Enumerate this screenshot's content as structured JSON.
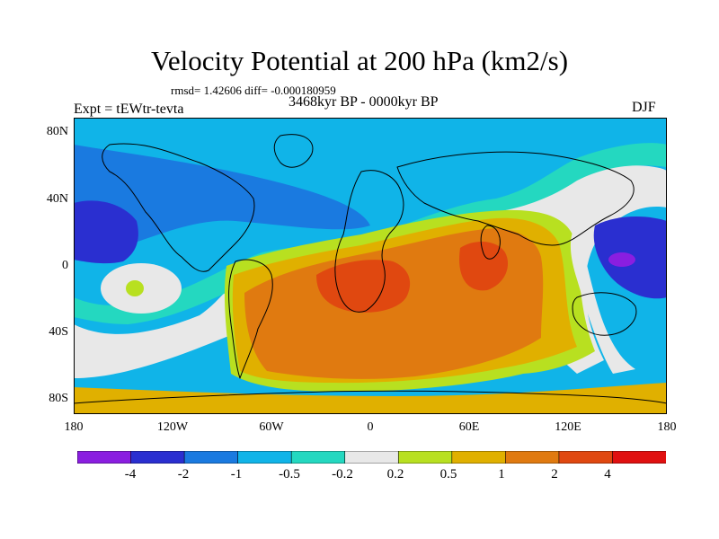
{
  "plot": {
    "title": "Velocity Potential at 200 hPa (km2/s)",
    "stats": "rmsd= 1.42606 diff= -0.000180959",
    "experiment": "Expt = tEWtr-tevta",
    "period": "3468kyr BP - 0000kyr BP",
    "season": "DJF"
  },
  "axes": {
    "lat_labels": [
      "80N",
      "40N",
      "0",
      "40S",
      "80S"
    ],
    "lon_labels": [
      "180",
      "120W",
      "60W",
      "0",
      "60E",
      "120E",
      "180"
    ]
  },
  "colorbar": {
    "labels": [
      "-4",
      "-2",
      "-1",
      "-0.5",
      "-0.2",
      "0.2",
      "0.5",
      "1",
      "2",
      "4"
    ],
    "colors": [
      "#8a1ee0",
      "#2a2fd0",
      "#1a7ae0",
      "#10b4e8",
      "#24d8c0",
      "#e8e8e8",
      "#b8e020",
      "#e0b000",
      "#e07a10",
      "#e04810",
      "#e01010"
    ]
  },
  "colors": {
    "strong_negative": "#2a2fd0",
    "moderate_negative": "#1a7ae0",
    "weak_negative": "#10b4e8",
    "near_zero_negative": "#24d8c0",
    "neutral": "#e8e8e8",
    "weak_positive": "#b8e020",
    "moderate_positive": "#e0b000",
    "strong_positive": "#e07a10",
    "very_strong_positive": "#e04810",
    "extreme_negative": "#8a1ee0",
    "coastline": "#000000"
  }
}
